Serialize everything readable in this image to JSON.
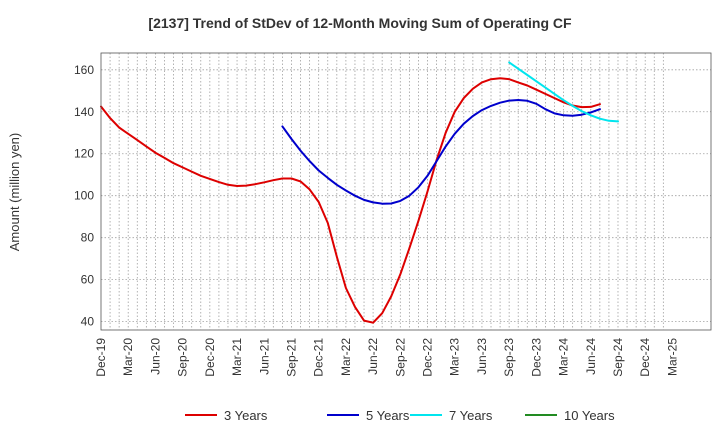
{
  "chart_data": {
    "type": "line",
    "title": "[2137]  Trend of StDev of 12-Month Moving Sum of Operating CF",
    "xlabel": "",
    "ylabel": "Amount (million yen)",
    "x_ticks": [
      "Dec-19",
      "Mar-20",
      "Jun-20",
      "Sep-20",
      "Dec-20",
      "Mar-21",
      "Jun-21",
      "Sep-21",
      "Dec-21",
      "Mar-22",
      "Jun-22",
      "Sep-22",
      "Dec-22",
      "Mar-23",
      "Jun-23",
      "Sep-23",
      "Dec-23",
      "Mar-24",
      "Jun-24",
      "Sep-24",
      "Dec-24",
      "Mar-25"
    ],
    "y_ticks": [
      40,
      60,
      80,
      100,
      120,
      140,
      160
    ],
    "ylim": [
      36,
      168
    ],
    "grid": true,
    "legend_position": "bottom",
    "series": [
      {
        "name": "3 Years",
        "color": "#dd0000",
        "start_index": 0,
        "values": [
          142.5,
          137,
          132.5,
          129.5,
          126.5,
          123.5,
          120.5,
          118,
          115.5,
          113.5,
          111.5,
          109.5,
          108,
          106.5,
          105.2,
          104.6,
          104.8,
          105.5,
          106.4,
          107.4,
          108.2,
          108.2,
          106.8,
          103,
          97,
          87,
          71,
          56,
          47,
          40.5,
          39.5,
          44,
          52,
          62.5,
          75,
          88,
          102,
          117,
          130,
          140,
          146.5,
          151,
          154,
          155.5,
          156,
          155.5,
          154,
          152.5,
          150.5,
          148.5,
          146.5,
          144.5,
          143,
          142.2,
          142.3,
          143.6
        ]
      },
      {
        "name": "5 Years",
        "color": "#0000cc",
        "start_index": 20,
        "values": [
          133,
          127,
          121.5,
          116.5,
          112,
          108.5,
          105.2,
          102.5,
          100,
          98,
          96.8,
          96.2,
          96.3,
          97.5,
          100,
          104,
          109.5,
          116.5,
          123.5,
          129.5,
          134.3,
          138,
          140.8,
          142.8,
          144.3,
          145.3,
          145.6,
          145.2,
          143.8,
          141.2,
          139.2,
          138.3,
          138.1,
          138.6,
          139.7,
          141.2
        ]
      },
      {
        "name": "7 Years",
        "color": "#00e5ee",
        "start_index": 45,
        "values": [
          163.5,
          160.5,
          157.5,
          154.5,
          151.5,
          148.5,
          145.5,
          142.8,
          140.3,
          138.3,
          136.7,
          135.7,
          135.4
        ]
      },
      {
        "name": "10 Years",
        "color": "#228b22",
        "start_index": 0,
        "values": []
      }
    ]
  }
}
